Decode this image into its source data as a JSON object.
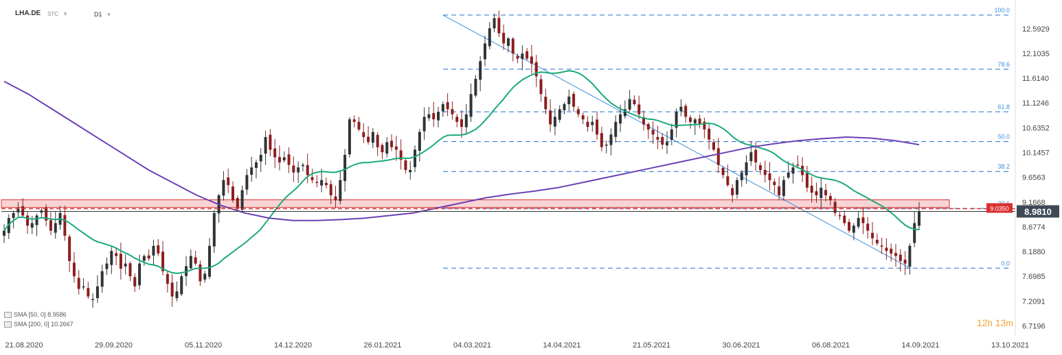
{
  "header": {
    "symbol": "LHA.DE",
    "instrument_type": "STC",
    "interval": "D1"
  },
  "indicators": [
    {
      "label": "SMA",
      "params": "[50, 0]",
      "value": "8.9586",
      "color": "#19a97b"
    },
    {
      "label": "SMA",
      "params": "[200, 0]",
      "value": "10.2667",
      "color": "#6b3fb5"
    }
  ],
  "timer": {
    "hours": "12",
    "h_unit": "h",
    "minutes": "13",
    "m_unit": "m"
  },
  "chart_data": {
    "type": "candlestick",
    "ylim": [
      6.55,
      13.05
    ],
    "y_ticks": [
      "12.5929",
      "12.1035",
      "11.6140",
      "11.1246",
      "10.6352",
      "10.1457",
      "9.6563",
      "9.1668",
      "8.6774",
      "8.1880",
      "7.6985",
      "7.2091",
      "6.7196"
    ],
    "x_ticks": [
      "21.08.2020",
      "29.09.2020",
      "05.11.2020",
      "14.12.2020",
      "26.01.2021",
      "04.03.2021",
      "14.04.2021",
      "21.05.2021",
      "30.06.2021",
      "06.08.2021",
      "14.09.2021",
      "13.10.2021"
    ],
    "last_price": "8.9810",
    "alert_price": "9.0350",
    "support_zone": [
      9.06,
      9.21
    ],
    "fibonacci": {
      "high": 12.86,
      "low": 7.86,
      "levels": [
        "100.0",
        "78.6",
        "61.8",
        "50.0",
        "38.2",
        "23.6",
        "0.0"
      ]
    },
    "trendline": {
      "from": 12.86,
      "to": 7.86
    },
    "colors": {
      "up": "#2e3438",
      "down": "#8b1e1e",
      "sma50": "#19a97b",
      "sma200": "#6b3fb5",
      "fib": "#1f6fd0",
      "zone": "#f3b4b4",
      "alert": "#d93030"
    },
    "series": [
      {
        "name": "price",
        "close_path": [
          8.6,
          8.85,
          8.95,
          9.05,
          8.9,
          8.7,
          8.75,
          8.9,
          9.0,
          8.8,
          8.6,
          8.75,
          8.95,
          8.5,
          8.0,
          7.7,
          7.45,
          7.5,
          7.3,
          7.25,
          7.5,
          7.8,
          7.95,
          8.2,
          8.1,
          7.85,
          7.95,
          7.7,
          7.5,
          7.95,
          8.1,
          8.05,
          8.3,
          8.15,
          7.8,
          7.55,
          7.3,
          7.4,
          7.7,
          7.9,
          8.1,
          7.95,
          7.6,
          7.75,
          8.3,
          8.95,
          9.3,
          9.6,
          9.5,
          9.2,
          9.05,
          9.4,
          9.7,
          9.85,
          9.95,
          10.1,
          10.45,
          10.2,
          10.05,
          9.95,
          10.05,
          9.9,
          9.75,
          9.85,
          9.9,
          9.7,
          9.6,
          9.55,
          9.6,
          9.5,
          9.3,
          9.2,
          9.6,
          10.1,
          10.8,
          10.75,
          10.6,
          10.45,
          10.35,
          10.55,
          10.25,
          10.15,
          10.35,
          10.25,
          10.2,
          10.0,
          9.8,
          9.8,
          10.2,
          10.55,
          10.85,
          10.9,
          10.8,
          10.95,
          11.1,
          11.0,
          10.9,
          10.75,
          10.65,
          10.9,
          11.3,
          11.6,
          11.95,
          12.3,
          12.6,
          12.8,
          12.5,
          12.3,
          12.4,
          12.1,
          12.0,
          12.1,
          12.0,
          11.9,
          11.65,
          11.3,
          11.0,
          10.7,
          10.85,
          11.0,
          11.1,
          11.25,
          11.05,
          10.9,
          10.8,
          10.65,
          10.75,
          10.5,
          10.25,
          10.3,
          10.5,
          10.75,
          10.9,
          11.0,
          11.2,
          11.1,
          10.9,
          10.7,
          10.6,
          10.5,
          10.4,
          10.3,
          10.35,
          10.6,
          10.95,
          11.05,
          10.85,
          10.75,
          10.8,
          10.7,
          10.6,
          10.4,
          10.2,
          9.9,
          9.7,
          9.5,
          9.3,
          9.6,
          9.75,
          9.95,
          10.15,
          9.95,
          9.8,
          9.7,
          9.6,
          9.5,
          9.3,
          9.6,
          9.75,
          9.85,
          9.9,
          9.7,
          9.45,
          9.35,
          9.3,
          9.45,
          9.3,
          9.2,
          8.95,
          8.9,
          8.75,
          8.6,
          8.7,
          8.85,
          8.75,
          8.6,
          8.45,
          8.35,
          8.3,
          8.2,
          8.15,
          8.1,
          8.0,
          7.95,
          8.3,
          8.75,
          8.98
        ]
      }
    ]
  }
}
